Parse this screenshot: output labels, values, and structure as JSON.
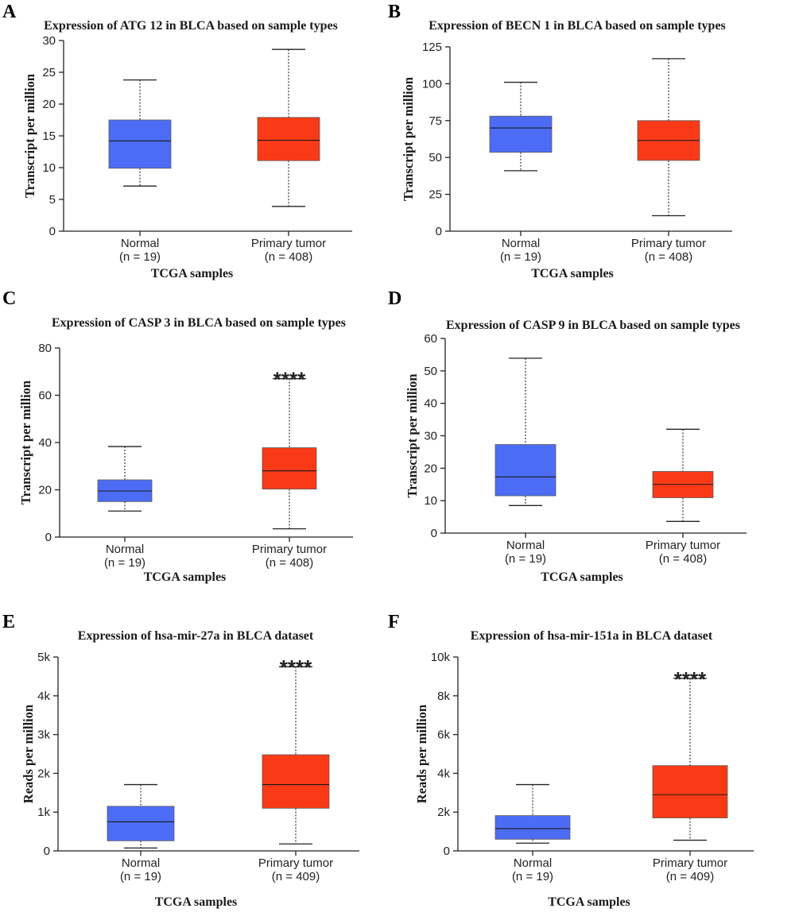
{
  "chart_data": [
    {
      "type": "box",
      "panel": "A",
      "title": "Expression of ATG 12 in BLCA based on sample types",
      "ylabel": "Transcript per million",
      "xlabel": "TCGA samples",
      "ylim": [
        0,
        30
      ],
      "yticks": [
        0,
        5,
        10,
        15,
        20,
        25,
        30
      ],
      "ytick_labels": [
        "0",
        "5",
        "10",
        "15",
        "20",
        "25",
        "30"
      ],
      "categories": [
        {
          "name": "Normal",
          "n": "(n = 19)",
          "color": "#4d6cf5",
          "min": 7.1,
          "q1": 9.9,
          "median": 14.2,
          "q3": 17.5,
          "max": 23.8
        },
        {
          "name": "Primary tumor",
          "n": "(n = 408)",
          "color": "#fa3a17",
          "min": 3.9,
          "q1": 11.1,
          "median": 14.3,
          "q3": 17.9,
          "max": 28.6
        }
      ],
      "significance": ""
    },
    {
      "type": "box",
      "panel": "B",
      "title": "Expression of BECN 1 in BLCA based on sample types",
      "ylabel": "Transcript per million",
      "xlabel": "TCGA samples",
      "ylim": [
        0,
        125
      ],
      "yticks": [
        0,
        25,
        50,
        75,
        100,
        125
      ],
      "ytick_labels": [
        "0",
        "25",
        "50",
        "75",
        "100",
        "125"
      ],
      "categories": [
        {
          "name": "Normal",
          "n": "(n = 19)",
          "color": "#4d6cf5",
          "min": 41,
          "q1": 53.5,
          "median": 70,
          "q3": 78,
          "max": 101
        },
        {
          "name": "Primary tumor",
          "n": "(n = 408)",
          "color": "#fa3a17",
          "min": 10.5,
          "q1": 48,
          "median": 61.5,
          "q3": 75,
          "max": 117
        }
      ],
      "significance": ""
    },
    {
      "type": "box",
      "panel": "C",
      "title": "Expression of CASP 3 in BLCA based on sample types",
      "ylabel": "Transcript per million",
      "xlabel": "TCGA samples",
      "ylim": [
        0,
        80
      ],
      "yticks": [
        0,
        20,
        40,
        60,
        80
      ],
      "ytick_labels": [
        "0",
        "20",
        "40",
        "60",
        "80"
      ],
      "categories": [
        {
          "name": "Normal",
          "n": "(n = 19)",
          "color": "#4d6cf5",
          "min": 11,
          "q1": 15,
          "median": 19.5,
          "q3": 24.2,
          "max": 38.3
        },
        {
          "name": "Primary tumor",
          "n": "(n = 408)",
          "color": "#fa3a17",
          "min": 3.5,
          "q1": 20.3,
          "median": 28,
          "q3": 37.8,
          "max": 67
        }
      ],
      "significance": "****"
    },
    {
      "type": "box",
      "panel": "D",
      "title": "Expression of CASP 9 in BLCA based on sample types",
      "ylabel": "Transcript per million",
      "xlabel": "TCGA samples",
      "ylim": [
        0,
        60
      ],
      "yticks": [
        0,
        10,
        20,
        30,
        40,
        50,
        60
      ],
      "ytick_labels": [
        "0",
        "10",
        "20",
        "30",
        "40",
        "50",
        "60"
      ],
      "categories": [
        {
          "name": "Normal",
          "n": "(n = 19)",
          "color": "#4d6cf5",
          "min": 8.5,
          "q1": 11.5,
          "median": 17.3,
          "q3": 27.3,
          "max": 53.9
        },
        {
          "name": "Primary tumor",
          "n": "(n = 408)",
          "color": "#fa3a17",
          "min": 3.6,
          "q1": 10.9,
          "median": 15,
          "q3": 19,
          "max": 32
        }
      ],
      "significance": ""
    },
    {
      "type": "box",
      "panel": "E",
      "title": "Expression of hsa-mir-27a in BLCA dataset",
      "ylabel": "Reads per million",
      "xlabel": "TCGA samples",
      "ylim": [
        0,
        5000
      ],
      "yticks": [
        0,
        1000,
        2000,
        3000,
        4000,
        5000
      ],
      "ytick_labels": [
        "0",
        "1k",
        "2k",
        "3k",
        "4k",
        "5k"
      ],
      "categories": [
        {
          "name": "Normal",
          "n": "(n = 19)",
          "color": "#4d6cf5",
          "min": 75,
          "q1": 260,
          "median": 750,
          "q3": 1150,
          "max": 1710
        },
        {
          "name": "Primary tumor",
          "n": "(n = 409)",
          "color": "#fa3a17",
          "min": 180,
          "q1": 1100,
          "median": 1710,
          "q3": 2480,
          "max": 4750
        }
      ],
      "significance": "****"
    },
    {
      "type": "box",
      "panel": "F",
      "title": "Expression of hsa-mir-151a in BLCA dataset",
      "ylabel": "Reads per million",
      "xlabel": "TCGA samples",
      "ylim": [
        0,
        10000
      ],
      "yticks": [
        0,
        2000,
        4000,
        6000,
        8000,
        10000
      ],
      "ytick_labels": [
        "0",
        "2k",
        "4k",
        "6k",
        "8k",
        "10k"
      ],
      "categories": [
        {
          "name": "Normal",
          "n": "(n = 19)",
          "color": "#4d6cf5",
          "min": 400,
          "q1": 600,
          "median": 1150,
          "q3": 1820,
          "max": 3420
        },
        {
          "name": "Primary tumor",
          "n": "(n = 409)",
          "color": "#fa3a17",
          "min": 550,
          "q1": 1700,
          "median": 2900,
          "q3": 4400,
          "max": 8900
        }
      ],
      "significance": "****"
    }
  ]
}
